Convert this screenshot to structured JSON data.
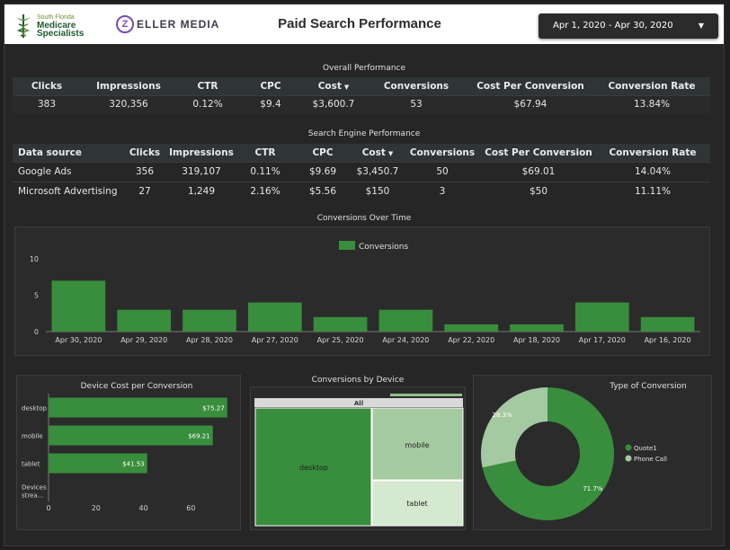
{
  "header": {
    "logo_south_florida": "South Florida",
    "logo_medicare": "Medicare",
    "logo_specialists": "Specialists",
    "logo_zeller_letter": "Z",
    "logo_zeller": "ELLER MEDIA",
    "title": "Paid Search Performance",
    "date_range": "Apr 1, 2020 - Apr 30, 2020"
  },
  "overall": {
    "title": "Overall Performance",
    "columns": [
      "Clicks",
      "Impressions",
      "CTR",
      "CPC",
      "Cost",
      "Conversions",
      "Cost Per Conversion",
      "Conversion Rate"
    ],
    "row": [
      "383",
      "320,356",
      "0.12%",
      "$9.4",
      "$3,600.7",
      "53",
      "$67.94",
      "13.84%"
    ]
  },
  "engine": {
    "title": "Search Engine Performance",
    "columns": [
      "Data source",
      "Clicks",
      "Impressions",
      "CTR",
      "CPC",
      "Cost",
      "Conversions",
      "Cost Per Conversion",
      "Conversion Rate"
    ],
    "rows": [
      [
        "Google Ads",
        "356",
        "319,107",
        "0.11%",
        "$9.69",
        "$3,450.7",
        "50",
        "$69.01",
        "14.04%"
      ],
      [
        "Microsoft Advertising",
        "27",
        "1,249",
        "2.16%",
        "$5.56",
        "$150",
        "3",
        "$50",
        "11.11%"
      ]
    ]
  },
  "colors": {
    "dark_green": "#388e3c",
    "light_green": "#a5c9a0",
    "pale_green": "#d5e8d0",
    "header_bg": "#ffffff"
  },
  "chart_data": [
    {
      "type": "bar",
      "title": "Conversions Over Time",
      "categories": [
        "Apr 30, 2020",
        "Apr 29, 2020",
        "Apr 28, 2020",
        "Apr 27, 2020",
        "Apr 25, 2020",
        "Apr 24, 2020",
        "Apr 22, 2020",
        "Apr 18, 2020",
        "Apr 17, 2020",
        "Apr 16, 2020"
      ],
      "series": [
        {
          "name": "Conversions",
          "values": [
            7,
            3,
            3,
            4,
            2,
            3,
            1,
            1,
            4,
            2
          ]
        }
      ],
      "ylim": [
        0,
        10
      ],
      "yticks": [
        "0",
        "5",
        "10"
      ],
      "legend": "top"
    },
    {
      "type": "bar",
      "orientation": "horizontal",
      "title": "Device Cost per Conversion",
      "categories": [
        "desktop",
        "mobile",
        "tablet",
        "Devices strea..."
      ],
      "values": [
        75.27,
        69.21,
        41.53,
        null
      ],
      "labels": [
        "$75.27",
        "$69.21",
        "$41.53",
        ""
      ],
      "xlim": [
        0,
        75
      ],
      "xticks": [
        "0",
        "20",
        "40",
        "60"
      ]
    },
    {
      "type": "treemap",
      "title": "Conversions by Device",
      "root": "All",
      "categories": [
        "desktop",
        "mobile",
        "tablet"
      ]
    },
    {
      "type": "pie",
      "title": "Type of Conversion",
      "categories": [
        "Quote1",
        "Phone Call"
      ],
      "values": [
        71.7,
        28.3
      ],
      "labels": [
        "71.7%",
        "28.3%"
      ],
      "donut": true,
      "legend": "right"
    }
  ]
}
